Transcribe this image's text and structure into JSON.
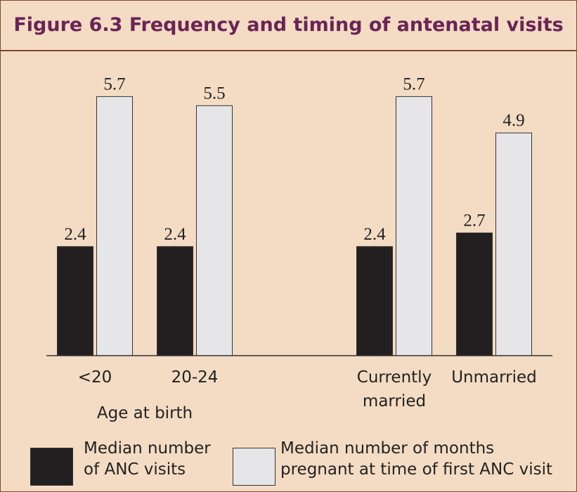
{
  "chart_data": {
    "type": "bar",
    "title": "Figure 6.3  Frequency and timing of antenatal visits",
    "categories": [
      "<20",
      "20-24",
      "Currently married",
      "Unmarried"
    ],
    "group_label": "Age at birth",
    "series": [
      {
        "name": "Median number of ANC visits",
        "color": "#231f20",
        "values": [
          2.4,
          2.4,
          2.4,
          2.7
        ]
      },
      {
        "name": "Median number of months pregnant at time of first ANC visit",
        "color": "#e6e6e8",
        "values": [
          5.7,
          5.5,
          5.7,
          4.9
        ]
      }
    ],
    "ylim": [
      0,
      6
    ]
  }
}
